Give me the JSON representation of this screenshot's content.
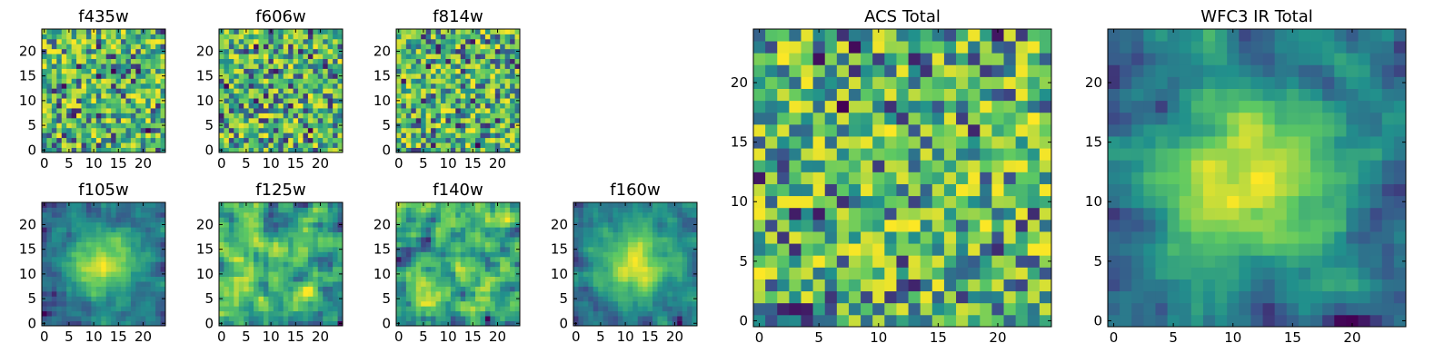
{
  "chart_data": [
    {
      "type": "heatmap",
      "title": "f435w",
      "grid_size": 25,
      "x_ticks": [
        "0",
        "5",
        "10",
        "15",
        "20"
      ],
      "y_ticks": [
        "0",
        "5",
        "10",
        "15",
        "20"
      ],
      "pattern": "noise",
      "seed": 11
    },
    {
      "type": "heatmap",
      "title": "f606w",
      "grid_size": 25,
      "x_ticks": [
        "0",
        "5",
        "10",
        "15",
        "20"
      ],
      "y_ticks": [
        "0",
        "5",
        "10",
        "15",
        "20"
      ],
      "pattern": "noise",
      "seed": 23
    },
    {
      "type": "heatmap",
      "title": "f814w",
      "grid_size": 25,
      "x_ticks": [
        "0",
        "5",
        "10",
        "15",
        "20"
      ],
      "y_ticks": [
        "0",
        "5",
        "10",
        "15",
        "20"
      ],
      "pattern": "noise",
      "seed": 37
    },
    {
      "type": "heatmap",
      "title": "f105w",
      "grid_size": 25,
      "x_ticks": [
        "0",
        "5",
        "10",
        "15",
        "20"
      ],
      "y_ticks": [
        "0",
        "5",
        "10",
        "15",
        "20"
      ],
      "pattern": "blob",
      "seed": 41
    },
    {
      "type": "heatmap",
      "title": "f125w",
      "grid_size": 25,
      "x_ticks": [
        "0",
        "5",
        "10",
        "15",
        "20"
      ],
      "y_ticks": [
        "0",
        "5",
        "10",
        "15",
        "20"
      ],
      "pattern": "smooth",
      "seed": 53
    },
    {
      "type": "heatmap",
      "title": "f140w",
      "grid_size": 25,
      "x_ticks": [
        "0",
        "5",
        "10",
        "15",
        "20"
      ],
      "y_ticks": [
        "0",
        "5",
        "10",
        "15",
        "20"
      ],
      "pattern": "smooth",
      "seed": 67
    },
    {
      "type": "heatmap",
      "title": "f160w",
      "grid_size": 25,
      "x_ticks": [
        "0",
        "5",
        "10",
        "15",
        "20"
      ],
      "y_ticks": [
        "0",
        "5",
        "10",
        "15",
        "20"
      ],
      "pattern": "blob",
      "seed": 79
    },
    {
      "type": "heatmap",
      "title": "ACS Total",
      "grid_size": 25,
      "x_ticks": [
        "0",
        "5",
        "10",
        "15",
        "20"
      ],
      "y_ticks": [
        "0",
        "5",
        "10",
        "15",
        "20"
      ],
      "pattern": "noise",
      "seed": 97
    },
    {
      "type": "heatmap",
      "title": "WFC3 IR Total",
      "grid_size": 25,
      "x_ticks": [
        "0",
        "5",
        "10",
        "15",
        "20"
      ],
      "y_ticks": [
        "0",
        "5",
        "10",
        "15",
        "20"
      ],
      "pattern": "blob",
      "seed": 101
    }
  ],
  "colormap": [
    "#440154",
    "#3b528b",
    "#21918c",
    "#5ec962",
    "#fde725"
  ]
}
